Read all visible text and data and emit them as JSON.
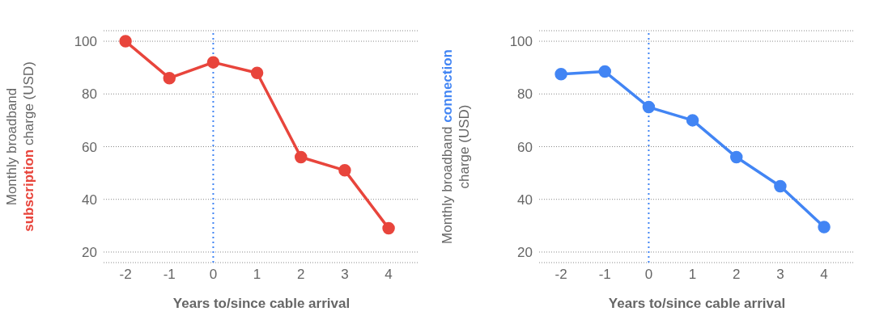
{
  "chart_data": [
    {
      "type": "line",
      "xlabel": "Years to/since cable arrival",
      "ylabel": "Monthly broadband subscription charge (USD)",
      "x": [
        -2,
        -1,
        0,
        1,
        2,
        3,
        4
      ],
      "series": [
        {
          "color": "#e8453c",
          "values": [
            100,
            86,
            92,
            88,
            56,
            51,
            29
          ]
        }
      ],
      "xlim": [
        -2.5,
        4.7
      ],
      "xticks": [
        -2,
        -1,
        0,
        1,
        2,
        3,
        4
      ],
      "ylim": [
        16,
        104
      ],
      "yticks": [
        20,
        40,
        60,
        80,
        100
      ],
      "grid": "y",
      "marker": "circle",
      "line_style": "solid",
      "ref_lines": [
        {
          "axis": "x",
          "value": 0,
          "color": "#4285f4",
          "line_style": "dotted"
        }
      ]
    },
    {
      "type": "line",
      "xlabel": "Years to/since cable arrival",
      "ylabel": "Monthly broadband connection charge (USD)",
      "x": [
        -2,
        -1,
        0,
        1,
        2,
        3,
        4
      ],
      "series": [
        {
          "color": "#4285f4",
          "values": [
            87.5,
            88.5,
            75,
            70,
            56,
            45,
            29.5
          ]
        }
      ],
      "xlim": [
        -2.5,
        4.7
      ],
      "xticks": [
        -2,
        -1,
        0,
        1,
        2,
        3,
        4
      ],
      "ylim": [
        16,
        104
      ],
      "yticks": [
        20,
        40,
        60,
        80,
        100
      ],
      "grid": "y",
      "marker": "circle",
      "line_style": "solid",
      "ref_lines": [
        {
          "axis": "x",
          "value": 0,
          "color": "#4285f4",
          "line_style": "dotted"
        }
      ]
    }
  ]
}
